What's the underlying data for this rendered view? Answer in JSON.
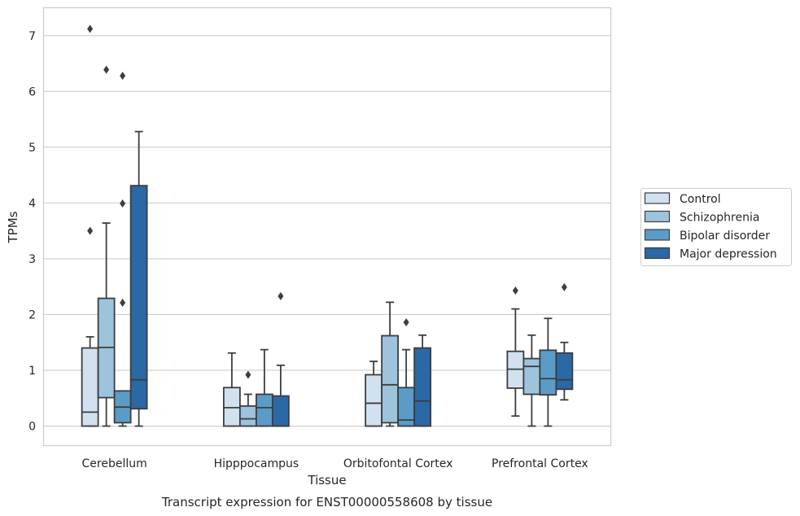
{
  "chart_data": {
    "type": "box",
    "caption": "Transcript expression for ENST00000558608 by tissue",
    "xlabel": "Tissue",
    "ylabel": "TPMs",
    "ylim": [
      -0.35,
      7.5
    ],
    "yticks": [
      "0",
      "1",
      "2",
      "3",
      "4",
      "5",
      "6",
      "7"
    ],
    "grid": "horizontal",
    "legend_position": "right",
    "categories": [
      "Cerebellum",
      "Hipppocampus",
      "Orbitofontal Cortex",
      "Prefrontal Cortex"
    ],
    "series": [
      {
        "name": "Control",
        "color": "#d1e1f0",
        "boxes": [
          {
            "q1": 0.0,
            "median": 0.25,
            "q3": 1.4,
            "whisker_low": 0.0,
            "whisker_high": 1.6,
            "outliers": [
              3.5,
              7.12
            ]
          },
          {
            "q1": 0.0,
            "median": 0.33,
            "q3": 0.69,
            "whisker_low": 0.0,
            "whisker_high": 1.31,
            "outliers": []
          },
          {
            "q1": 0.0,
            "median": 0.41,
            "q3": 0.92,
            "whisker_low": 0.0,
            "whisker_high": 1.16,
            "outliers": []
          },
          {
            "q1": 0.68,
            "median": 1.02,
            "q3": 1.34,
            "whisker_low": 0.18,
            "whisker_high": 2.1,
            "outliers": [
              2.43
            ]
          }
        ]
      },
      {
        "name": "Schizophrenia",
        "color": "#9dc3dd",
        "boxes": [
          {
            "q1": 0.51,
            "median": 1.41,
            "q3": 2.29,
            "whisker_low": 0.0,
            "whisker_high": 3.64,
            "outliers": [
              6.39
            ]
          },
          {
            "q1": 0.0,
            "median": 0.13,
            "q3": 0.36,
            "whisker_low": 0.0,
            "whisker_high": 0.57,
            "outliers": [
              0.92
            ]
          },
          {
            "q1": 0.06,
            "median": 0.74,
            "q3": 1.62,
            "whisker_low": 0.0,
            "whisker_high": 2.22,
            "outliers": []
          },
          {
            "q1": 0.57,
            "median": 1.07,
            "q3": 1.21,
            "whisker_low": 0.0,
            "whisker_high": 1.63,
            "outliers": []
          }
        ]
      },
      {
        "name": "Bipolar disorder",
        "color": "#5b9bc8",
        "boxes": [
          {
            "q1": 0.06,
            "median": 0.34,
            "q3": 0.63,
            "whisker_low": 0.0,
            "whisker_high": 0.63,
            "outliers": [
              2.21,
              3.99,
              6.28
            ]
          },
          {
            "q1": 0.0,
            "median": 0.33,
            "q3": 0.57,
            "whisker_low": 0.0,
            "whisker_high": 1.37,
            "outliers": []
          },
          {
            "q1": 0.0,
            "median": 0.11,
            "q3": 0.69,
            "whisker_low": 0.0,
            "whisker_high": 1.37,
            "outliers": [
              1.86
            ]
          },
          {
            "q1": 0.56,
            "median": 0.85,
            "q3": 1.36,
            "whisker_low": 0.0,
            "whisker_high": 1.93,
            "outliers": []
          }
        ]
      },
      {
        "name": "Major depression",
        "color": "#2a68a6",
        "boxes": [
          {
            "q1": 0.31,
            "median": 0.83,
            "q3": 4.31,
            "whisker_low": 0.0,
            "whisker_high": 5.28,
            "outliers": []
          },
          {
            "q1": 0.0,
            "median": 0.0,
            "q3": 0.54,
            "whisker_low": 0.0,
            "whisker_high": 1.09,
            "outliers": [
              2.33
            ]
          },
          {
            "q1": 0.0,
            "median": 0.45,
            "q3": 1.4,
            "whisker_low": 0.0,
            "whisker_high": 1.63,
            "outliers": []
          },
          {
            "q1": 0.66,
            "median": 0.83,
            "q3": 1.31,
            "whisker_low": 0.47,
            "whisker_high": 1.5,
            "outliers": [
              2.49
            ]
          }
        ]
      }
    ]
  }
}
